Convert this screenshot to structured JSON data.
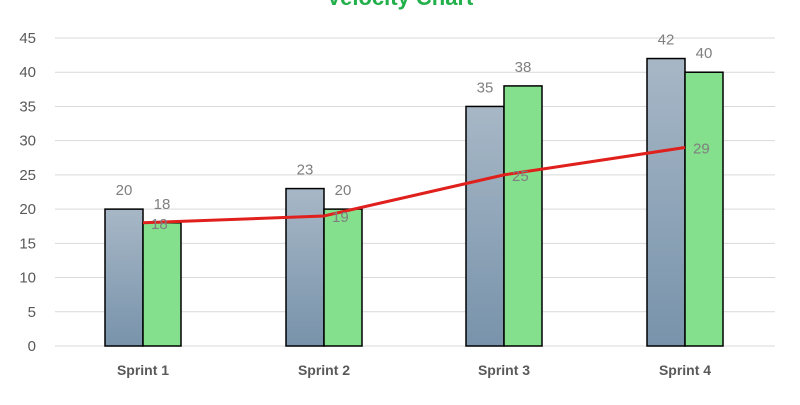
{
  "colors": {
    "title": "#22b04b",
    "planned_top": "#a7b7c6",
    "planned_bottom": "#7893ab",
    "completed": "#84e08c",
    "trend": "#e0201c",
    "grid": "#d9d9d9",
    "axis_text": "#595959",
    "data_label": "#7f7f7f"
  },
  "chart_data": {
    "type": "bar",
    "title": "Velocity Chart",
    "xlabel": "",
    "ylabel": "",
    "ylim": [
      0,
      45
    ],
    "yticks": [
      0,
      5,
      10,
      15,
      20,
      25,
      30,
      35,
      40,
      45
    ],
    "grid": true,
    "categories": [
      "Sprint 1",
      "Sprint 2",
      "Sprint 3",
      "Sprint 4"
    ],
    "series": [
      {
        "kind": "bar",
        "values": [
          20,
          23,
          35,
          42
        ]
      },
      {
        "kind": "bar",
        "values": [
          18,
          20,
          38,
          40
        ]
      },
      {
        "kind": "line",
        "values": [
          18,
          19,
          25,
          29
        ]
      }
    ]
  }
}
